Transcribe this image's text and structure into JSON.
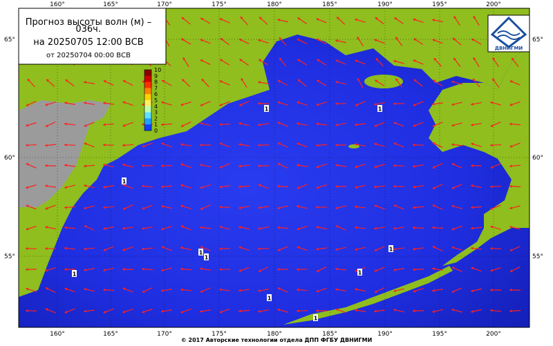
{
  "header": {
    "title_line1": "Прогноз высоты волн (м) –",
    "title_line2": "036ч.",
    "valid_time": "на 20250705 12:00 ВСВ",
    "issue_time": "от 20250704 00:00 ВСВ"
  },
  "axes": {
    "longitudes": [
      "160°",
      "165°",
      "170°",
      "175°",
      "180°",
      "185°",
      "190°",
      "195°",
      "200°"
    ],
    "latitudes": [
      "65°",
      "60°",
      "55°"
    ]
  },
  "color_scale": {
    "labels": [
      "10",
      "9",
      "8",
      "7",
      "6",
      "5",
      "4",
      "3",
      "2",
      "1",
      "0"
    ]
  },
  "logo": {
    "text": "ДВНИГМИ"
  },
  "contour_labels": [
    "1",
    "1",
    "1",
    "1",
    "1",
    "1",
    "1",
    "1",
    "1",
    "1"
  ],
  "footer": "© 2017 Авторские технологии отдела ДПП ФГБУ ДВНИГМИ"
}
